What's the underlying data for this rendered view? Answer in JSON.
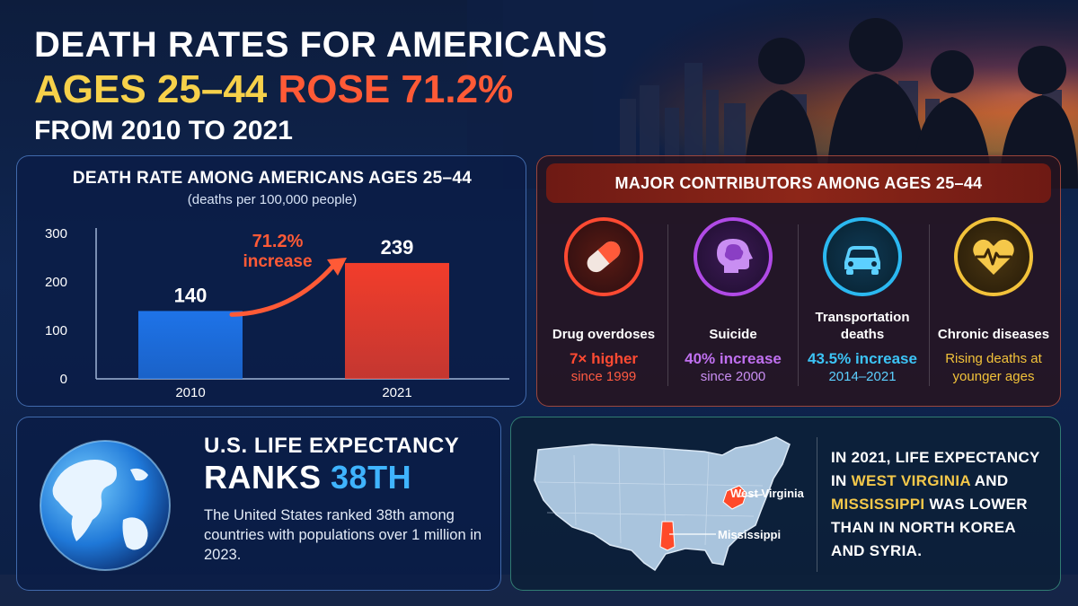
{
  "headline": {
    "line1": "DEATH RATES FOR AMERICANS",
    "line2_ages": "AGES 25–44",
    "line2_rose": "ROSE 71.2%",
    "line3": "FROM 2010 TO 2021"
  },
  "chart_data": {
    "type": "bar",
    "title": "DEATH RATE AMONG AMERICANS AGES 25–44",
    "subtitle": "(deaths per 100,000 people)",
    "categories": [
      "2010",
      "2021"
    ],
    "values": [
      140,
      239
    ],
    "value_labels": [
      "140",
      "239"
    ],
    "ylim": [
      0,
      300
    ],
    "yticks": [
      0,
      100,
      200,
      300
    ],
    "ytick_labels": [
      "0",
      "100",
      "200",
      "300"
    ],
    "bar_colors": [
      "#1e73e8",
      "#f23d2b"
    ],
    "annotation": {
      "value": "71.2%",
      "text": "increase",
      "color": "#ff5a36"
    },
    "grid": false
  },
  "contributors": {
    "header": "MAJOR CONTRIBUTORS AMONG AGES 25–44",
    "items": [
      {
        "icon": "pill-icon",
        "label": "Drug overdoses",
        "stat": "7× higher",
        "stat2": "since 1999",
        "color": "#ff4a32"
      },
      {
        "icon": "brain-head-icon",
        "label": "Suicide",
        "stat": "40% increase",
        "stat2": "since 2000",
        "color": "#b04ae6"
      },
      {
        "icon": "car-icon",
        "label": "Transportation deaths",
        "stat": "43.5% increase",
        "stat2": "2014–2021",
        "color": "#2bb8f0"
      },
      {
        "icon": "heartbeat-icon",
        "label": "Chronic diseases",
        "stat": "",
        "stat2": "Rising deaths at younger ages",
        "color": "#f2c23a"
      }
    ]
  },
  "life_expectancy": {
    "title": "U.S. LIFE EXPECTANCY",
    "ranks_label": "RANKS",
    "rank": "38TH",
    "body": "The United States ranked 38th among countries with populations over 1 million in 2023."
  },
  "map": {
    "states": [
      "West Virginia",
      "Mississippi"
    ],
    "text_pre": "IN 2021, LIFE EXPECTANCY IN",
    "state1": "WEST VIRGINIA",
    "and": "AND",
    "state2": "MISSISSIPPI",
    "text_post": "WAS LOWER THAN IN NORTH KOREA AND SYRIA."
  }
}
